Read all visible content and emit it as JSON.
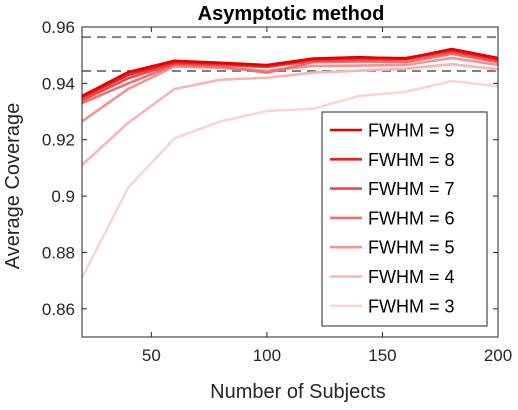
{
  "chart_data": {
    "type": "line",
    "title": "Asymptotic method",
    "xlabel": "Number of Subjects",
    "ylabel": "Average Coverage",
    "xlim": [
      20,
      200
    ],
    "ylim": [
      0.85,
      0.96
    ],
    "xticks": [
      50,
      100,
      150,
      200
    ],
    "yticks": [
      0.86,
      0.88,
      0.9,
      0.92,
      0.94,
      0.96
    ],
    "xtick_labels": [
      "50",
      "100",
      "150",
      "200"
    ],
    "ytick_labels": [
      "0.86",
      "0.88",
      "0.9",
      "0.92",
      "0.94",
      "0.96"
    ],
    "grid": false,
    "legend_position": "bottom-right",
    "reference_lines": [
      0.9564,
      0.9444
    ],
    "reference_line_color": "#808080",
    "x": [
      20,
      40,
      60,
      80,
      100,
      120,
      140,
      160,
      180,
      200
    ],
    "series": [
      {
        "name": "FWHM = 9",
        "color": "#e60000",
        "values": [
          0.9355,
          0.944,
          0.948,
          0.9473,
          0.9465,
          0.9488,
          0.9493,
          0.9488,
          0.9522,
          0.949
        ]
      },
      {
        "name": "FWHM = 8",
        "color": "#e92323",
        "values": [
          0.935,
          0.943,
          0.9475,
          0.947,
          0.946,
          0.9485,
          0.949,
          0.949,
          0.9518,
          0.9485
        ]
      },
      {
        "name": "FWHM = 7",
        "color": "#ec4a4a",
        "values": [
          0.934,
          0.9418,
          0.947,
          0.9465,
          0.9458,
          0.948,
          0.9483,
          0.9485,
          0.9512,
          0.948
        ]
      },
      {
        "name": "FWHM = 6",
        "color": "#f06e6e",
        "values": [
          0.933,
          0.94,
          0.9465,
          0.946,
          0.9438,
          0.9475,
          0.9478,
          0.9475,
          0.9505,
          0.9475
        ]
      },
      {
        "name": "FWHM = 5",
        "color": "#f39393",
        "values": [
          0.9265,
          0.938,
          0.946,
          0.9455,
          0.9445,
          0.9462,
          0.9463,
          0.9465,
          0.949,
          0.9465
        ]
      },
      {
        "name": "FWHM = 4",
        "color": "#f7b6b6",
        "values": [
          0.911,
          0.926,
          0.938,
          0.9413,
          0.942,
          0.9438,
          0.9445,
          0.9452,
          0.9468,
          0.945
        ]
      },
      {
        "name": "FWHM = 3",
        "color": "#fbd4d4",
        "values": [
          0.871,
          0.903,
          0.9205,
          0.9265,
          0.9302,
          0.931,
          0.9355,
          0.937,
          0.9408,
          0.939
        ]
      }
    ]
  }
}
